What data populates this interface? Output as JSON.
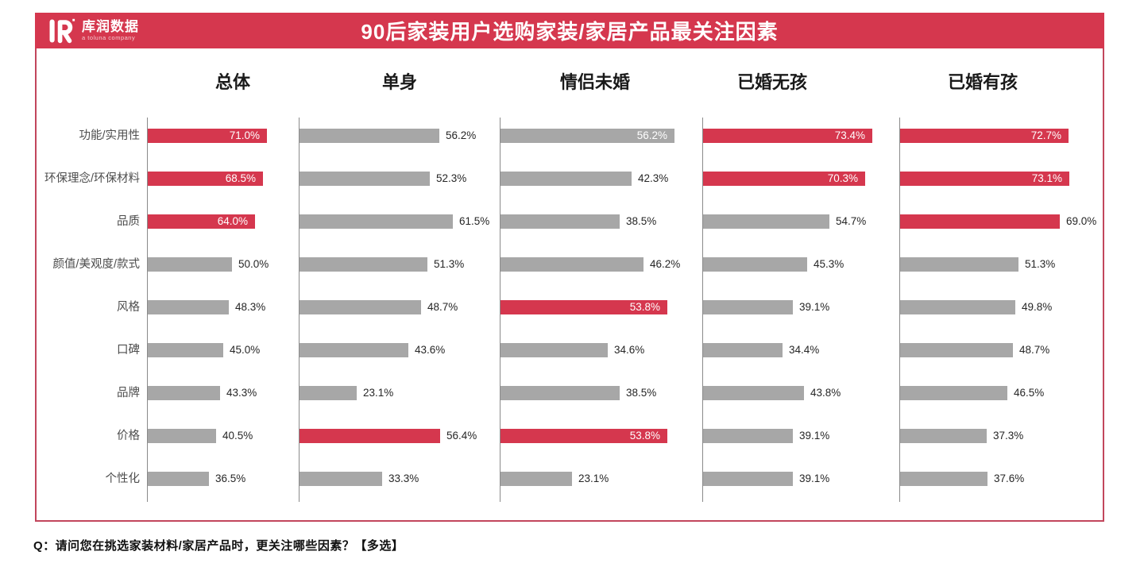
{
  "header": {
    "logo": {
      "brand": "库润数据",
      "subtitle": "a toluna company"
    },
    "title": "90后家装用户选购家装/家居产品最关注因素"
  },
  "footnote": "Q：请问您在挑选家装材料/家居产品时，更关注哪些因素？【多选】",
  "colors": {
    "red": "#d5374e",
    "gray": "#a7a7a7",
    "axis": "#8a8a8a",
    "frame": "#c2465c",
    "label_out": "#262626",
    "label_in": "#ffffff"
  },
  "chart_data": {
    "type": "bar",
    "orientation": "horizontal",
    "title": "90后家装用户选购家装/家居产品最关注因素",
    "unit": "%",
    "value_labels": true,
    "legend": "none",
    "categories": [
      "功能/实用性",
      "环保理念/环保材料",
      "品质",
      "颜值/美观度/款式",
      "风格",
      "口碑",
      "品牌",
      "价格",
      "个性化"
    ],
    "series": [
      {
        "name": "总体",
        "values": [
          71.0,
          68.5,
          64.0,
          50.0,
          48.3,
          45.0,
          43.3,
          40.5,
          36.5
        ],
        "highlighted": [
          true,
          true,
          true,
          false,
          false,
          false,
          false,
          false,
          false
        ],
        "label_inside": [
          true,
          true,
          true,
          false,
          false,
          false,
          false,
          false,
          false
        ]
      },
      {
        "name": "单身",
        "values": [
          56.2,
          52.3,
          61.5,
          51.3,
          48.7,
          43.6,
          23.1,
          56.4,
          33.3
        ],
        "highlighted": [
          false,
          false,
          false,
          false,
          false,
          false,
          false,
          true,
          false
        ],
        "label_inside": [
          false,
          false,
          false,
          false,
          false,
          false,
          false,
          false,
          false
        ]
      },
      {
        "name": "情侣未婚",
        "values": [
          56.2,
          42.3,
          38.5,
          46.2,
          53.8,
          34.6,
          38.5,
          53.8,
          23.1
        ],
        "highlighted": [
          false,
          false,
          false,
          false,
          true,
          false,
          false,
          true,
          false
        ],
        "label_inside": [
          true,
          false,
          false,
          false,
          true,
          false,
          false,
          true,
          false
        ]
      },
      {
        "name": "已婚无孩",
        "values": [
          73.4,
          70.3,
          54.7,
          45.3,
          39.1,
          34.4,
          43.8,
          39.1,
          39.1
        ],
        "highlighted": [
          true,
          true,
          false,
          false,
          false,
          false,
          false,
          false,
          false
        ],
        "label_inside": [
          true,
          true,
          false,
          false,
          false,
          false,
          false,
          false,
          false
        ]
      },
      {
        "name": "已婚有孩",
        "values": [
          72.7,
          73.1,
          69.0,
          51.3,
          49.8,
          48.7,
          46.5,
          37.3,
          37.6
        ],
        "highlighted": [
          true,
          true,
          true,
          false,
          false,
          false,
          false,
          false,
          false
        ],
        "label_inside": [
          true,
          true,
          false,
          false,
          false,
          false,
          false,
          false,
          false
        ]
      }
    ]
  }
}
